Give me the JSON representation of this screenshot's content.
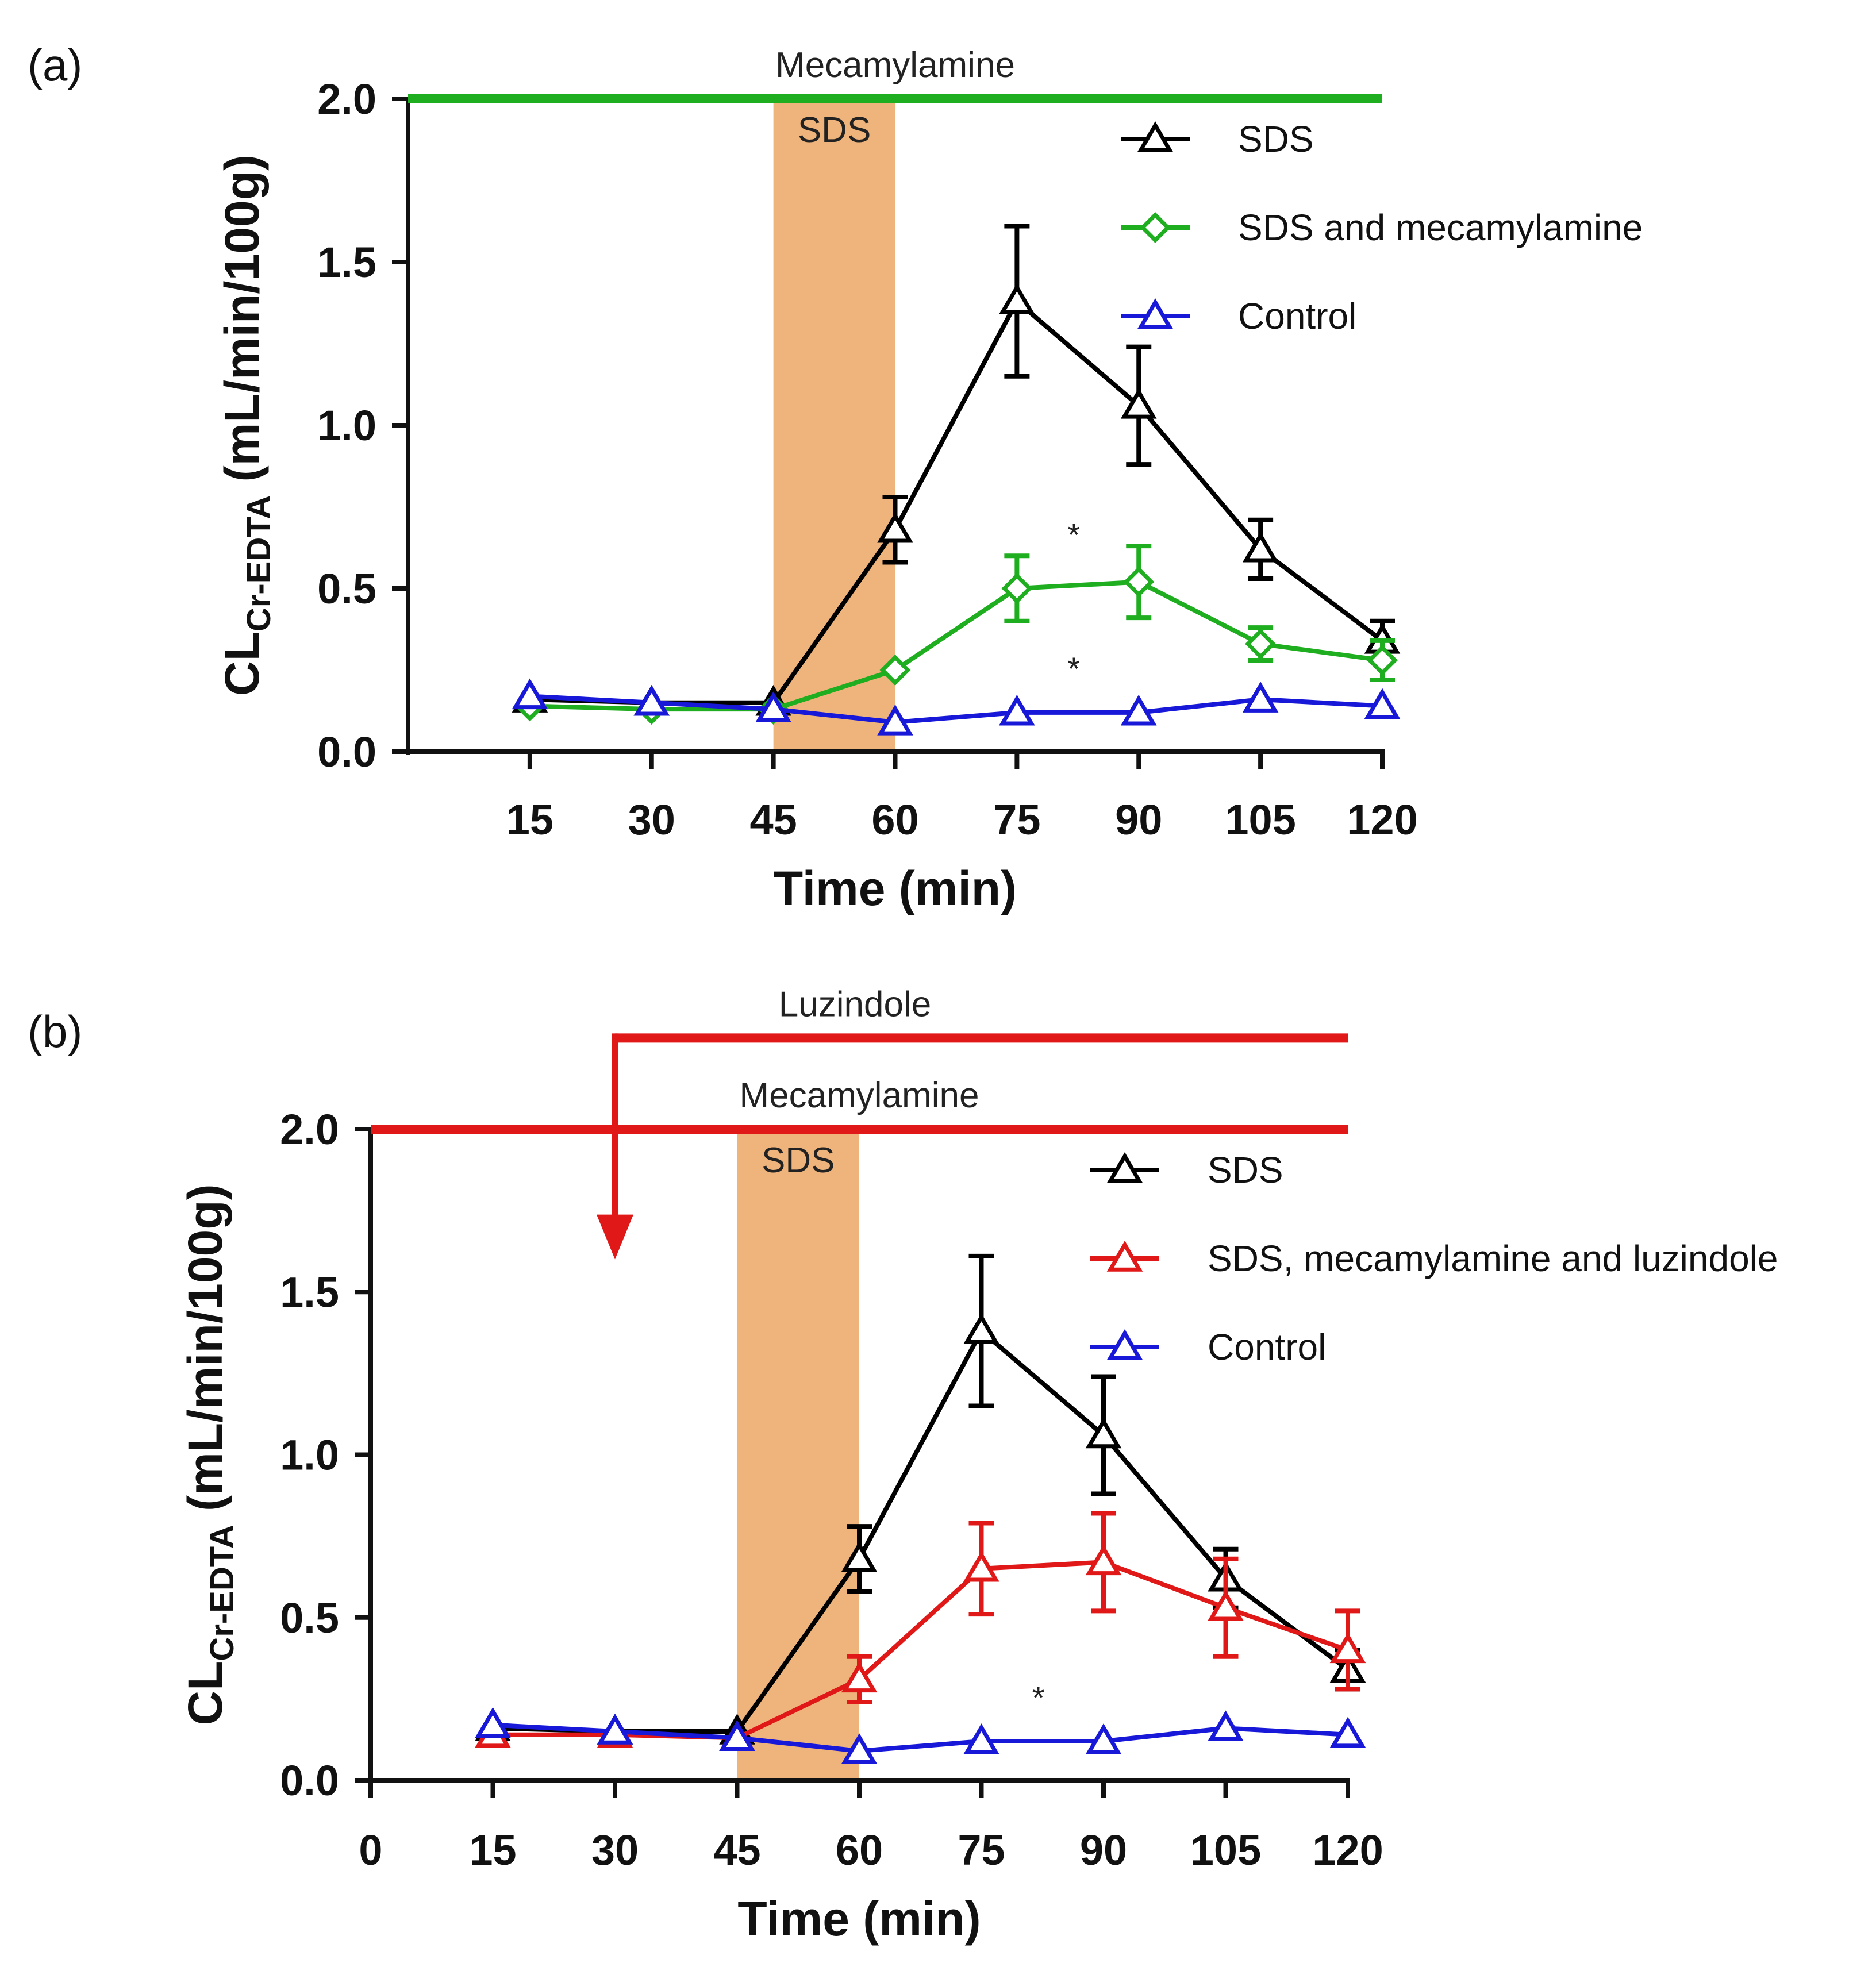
{
  "colors": {
    "SDS": "#000000",
    "SDS and mecamylamine": "#1fae1f",
    "SDS, mecamylamine and luzindole": "#e01818",
    "Control": "#1818d8",
    "sds_band": "#efb47c"
  },
  "chart_data": [
    {
      "type": "line",
      "panel_label": "(a)",
      "title": "",
      "xlabel": "Time (min)",
      "ylabel_main": "CL",
      "ylabel_sub": "Cr-EDTA",
      "ylabel_unit": " (mL/min/100g)",
      "xlim": [
        0,
        120
      ],
      "ylim": [
        0,
        2.0
      ],
      "x_ticks": [
        "15",
        "30",
        "45",
        "60",
        "75",
        "90",
        "105",
        "120"
      ],
      "x_tick_values": [
        15,
        30,
        45,
        60,
        75,
        90,
        105,
        120
      ],
      "y_ticks": [
        "0.0",
        "0.5",
        "1.0",
        "1.5",
        "2.0"
      ],
      "y_tick_values": [
        0,
        0.5,
        1.0,
        1.5,
        2.0
      ],
      "treatment_bars": [
        {
          "label": "Mecamylamine",
          "x_start": 0,
          "x_end": 120,
          "level": 2.0,
          "color": "#1fae1f",
          "arrow": false
        }
      ],
      "shaded_region": {
        "label": "SDS",
        "x_start": 45,
        "x_end": 60
      },
      "legend_position": "top-right",
      "series": [
        {
          "name": "SDS",
          "marker": "triangle",
          "x": [
            15,
            30,
            45,
            60,
            75,
            90,
            105,
            120
          ],
          "values": [
            0.16,
            0.15,
            0.15,
            0.68,
            1.38,
            1.06,
            0.62,
            0.34
          ],
          "errors": [
            null,
            null,
            null,
            0.1,
            0.23,
            0.18,
            0.09,
            0.06
          ]
        },
        {
          "name": "SDS and mecamylamine",
          "marker": "diamond",
          "x": [
            15,
            30,
            45,
            60,
            75,
            90,
            105,
            120
          ],
          "values": [
            0.14,
            0.13,
            0.13,
            0.25,
            0.5,
            0.52,
            0.33,
            0.28
          ],
          "errors": [
            null,
            null,
            null,
            null,
            0.1,
            0.11,
            0.05,
            0.06
          ]
        },
        {
          "name": "Control",
          "marker": "triangle",
          "x": [
            15,
            30,
            45,
            60,
            75,
            90,
            105,
            120
          ],
          "values": [
            0.17,
            0.15,
            0.13,
            0.09,
            0.12,
            0.12,
            0.16,
            0.14
          ],
          "errors": [
            null,
            null,
            null,
            null,
            null,
            null,
            null,
            null
          ]
        }
      ],
      "annotations": [
        {
          "text": "*",
          "x": 82,
          "y": 0.63
        },
        {
          "text": "*",
          "x": 82,
          "y": 0.22
        }
      ]
    },
    {
      "type": "line",
      "panel_label": "(b)",
      "title": "",
      "xlabel": "Time (min)",
      "ylabel_main": "CL",
      "ylabel_sub": "Cr-EDTA",
      "ylabel_unit": " (mL/min/100g)",
      "xlim": [
        0,
        120
      ],
      "ylim": [
        0,
        2.0
      ],
      "x_ticks": [
        "0",
        "15",
        "30",
        "45",
        "60",
        "75",
        "90",
        "105",
        "120"
      ],
      "x_tick_values": [
        0,
        15,
        30,
        45,
        60,
        75,
        90,
        105,
        120
      ],
      "y_ticks": [
        "0.0",
        "0.5",
        "1.0",
        "1.5",
        "2.0"
      ],
      "y_tick_values": [
        0,
        0.5,
        1.0,
        1.5,
        2.0
      ],
      "treatment_bars": [
        {
          "label": "Luzindole",
          "x_start": 30,
          "x_end": 120,
          "level": 2.28,
          "color": "#e01818",
          "arrow": true,
          "arrow_to": 1.6
        },
        {
          "label": "Mecamylamine",
          "x_start": 0,
          "x_end": 120,
          "level": 2.0,
          "color": "#e01818",
          "arrow": false
        }
      ],
      "shaded_region": {
        "label": "SDS",
        "x_start": 45,
        "x_end": 60
      },
      "legend_position": "top-right",
      "series": [
        {
          "name": "SDS",
          "marker": "triangle",
          "x": [
            15,
            30,
            45,
            60,
            75,
            90,
            105,
            120
          ],
          "values": [
            0.16,
            0.15,
            0.15,
            0.68,
            1.38,
            1.06,
            0.62,
            0.34
          ],
          "errors": [
            null,
            null,
            null,
            0.1,
            0.23,
            0.18,
            0.09,
            0.06
          ]
        },
        {
          "name": "SDS, mecamylamine and luzindole",
          "marker": "triangle",
          "x": [
            15,
            30,
            45,
            60,
            75,
            90,
            105,
            120
          ],
          "values": [
            0.14,
            0.14,
            0.13,
            0.31,
            0.65,
            0.67,
            0.53,
            0.4
          ],
          "errors": [
            null,
            null,
            null,
            0.07,
            0.14,
            0.15,
            0.15,
            0.12
          ]
        },
        {
          "name": "Control",
          "marker": "triangle",
          "x": [
            15,
            30,
            45,
            60,
            75,
            90,
            105,
            120
          ],
          "values": [
            0.17,
            0.15,
            0.13,
            0.09,
            0.12,
            0.12,
            0.16,
            0.14
          ],
          "errors": [
            null,
            null,
            null,
            null,
            null,
            null,
            null,
            null
          ]
        }
      ],
      "annotations": [
        {
          "text": "*",
          "x": 82,
          "y": 0.22
        }
      ]
    }
  ]
}
